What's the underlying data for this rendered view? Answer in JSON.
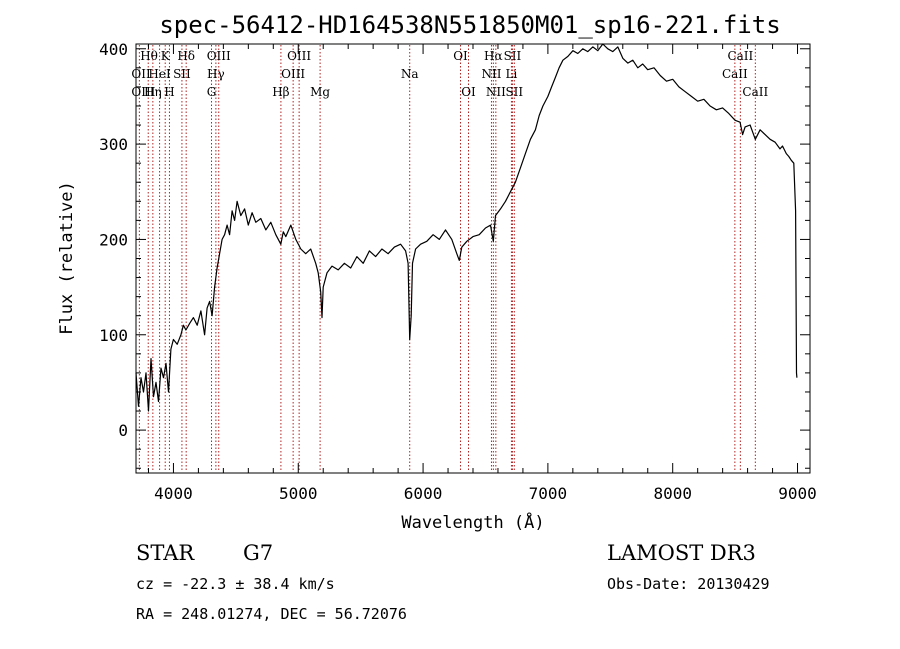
{
  "chart_data": {
    "type": "line",
    "title": "spec-56412-HD164538N551850M01_sp16-221.fits",
    "xlabel": "Wavelength (Å)",
    "ylabel": "Flux (relative)",
    "xlim": [
      3700,
      9100
    ],
    "ylim": [
      -45,
      405
    ],
    "xticks": [
      4000,
      5000,
      6000,
      7000,
      8000,
      9000
    ],
    "yticks": [
      0,
      100,
      200,
      300,
      400
    ],
    "series": [
      {
        "name": "spectrum",
        "points": [
          [
            3700,
            60
          ],
          [
            3720,
            25
          ],
          [
            3740,
            55
          ],
          [
            3760,
            40
          ],
          [
            3780,
            60
          ],
          [
            3800,
            20
          ],
          [
            3820,
            75
          ],
          [
            3840,
            35
          ],
          [
            3860,
            50
          ],
          [
            3880,
            30
          ],
          [
            3900,
            65
          ],
          [
            3920,
            55
          ],
          [
            3940,
            70
          ],
          [
            3960,
            40
          ],
          [
            3980,
            85
          ],
          [
            4000,
            95
          ],
          [
            4030,
            90
          ],
          [
            4060,
            100
          ],
          [
            4080,
            110
          ],
          [
            4100,
            105
          ],
          [
            4130,
            112
          ],
          [
            4160,
            118
          ],
          [
            4190,
            110
          ],
          [
            4220,
            125
          ],
          [
            4250,
            100
          ],
          [
            4270,
            128
          ],
          [
            4290,
            135
          ],
          [
            4310,
            120
          ],
          [
            4330,
            150
          ],
          [
            4350,
            170
          ],
          [
            4370,
            185
          ],
          [
            4390,
            200
          ],
          [
            4410,
            205
          ],
          [
            4430,
            215
          ],
          [
            4450,
            205
          ],
          [
            4470,
            230
          ],
          [
            4490,
            220
          ],
          [
            4510,
            240
          ],
          [
            4540,
            225
          ],
          [
            4570,
            232
          ],
          [
            4600,
            215
          ],
          [
            4630,
            228
          ],
          [
            4660,
            218
          ],
          [
            4700,
            222
          ],
          [
            4740,
            210
          ],
          [
            4780,
            218
          ],
          [
            4820,
            205
          ],
          [
            4860,
            195
          ],
          [
            4880,
            208
          ],
          [
            4900,
            203
          ],
          [
            4940,
            215
          ],
          [
            4980,
            200
          ],
          [
            5020,
            190
          ],
          [
            5060,
            185
          ],
          [
            5100,
            190
          ],
          [
            5140,
            175
          ],
          [
            5160,
            165
          ],
          [
            5180,
            145
          ],
          [
            5190,
            118
          ],
          [
            5200,
            150
          ],
          [
            5230,
            165
          ],
          [
            5270,
            172
          ],
          [
            5320,
            168
          ],
          [
            5370,
            175
          ],
          [
            5420,
            170
          ],
          [
            5470,
            182
          ],
          [
            5520,
            175
          ],
          [
            5570,
            188
          ],
          [
            5620,
            182
          ],
          [
            5670,
            190
          ],
          [
            5720,
            185
          ],
          [
            5770,
            192
          ],
          [
            5820,
            195
          ],
          [
            5860,
            188
          ],
          [
            5880,
            175
          ],
          [
            5893,
            95
          ],
          [
            5905,
            120
          ],
          [
            5915,
            175
          ],
          [
            5940,
            190
          ],
          [
            5980,
            195
          ],
          [
            6030,
            198
          ],
          [
            6080,
            205
          ],
          [
            6130,
            200
          ],
          [
            6180,
            210
          ],
          [
            6230,
            200
          ],
          [
            6270,
            185
          ],
          [
            6290,
            178
          ],
          [
            6310,
            192
          ],
          [
            6350,
            198
          ],
          [
            6400,
            203
          ],
          [
            6450,
            205
          ],
          [
            6500,
            212
          ],
          [
            6540,
            215
          ],
          [
            6563,
            198
          ],
          [
            6580,
            225
          ],
          [
            6620,
            232
          ],
          [
            6660,
            240
          ],
          [
            6700,
            250
          ],
          [
            6740,
            260
          ],
          [
            6780,
            275
          ],
          [
            6820,
            290
          ],
          [
            6860,
            305
          ],
          [
            6900,
            315
          ],
          [
            6930,
            330
          ],
          [
            6960,
            340
          ],
          [
            7000,
            350
          ],
          [
            7030,
            360
          ],
          [
            7060,
            370
          ],
          [
            7090,
            380
          ],
          [
            7120,
            388
          ],
          [
            7160,
            392
          ],
          [
            7200,
            398
          ],
          [
            7240,
            395
          ],
          [
            7280,
            400
          ],
          [
            7320,
            397
          ],
          [
            7360,
            402
          ],
          [
            7400,
            398
          ],
          [
            7440,
            405
          ],
          [
            7480,
            400
          ],
          [
            7520,
            397
          ],
          [
            7560,
            402
          ],
          [
            7600,
            390
          ],
          [
            7640,
            385
          ],
          [
            7680,
            388
          ],
          [
            7720,
            380
          ],
          [
            7760,
            384
          ],
          [
            7800,
            378
          ],
          [
            7850,
            380
          ],
          [
            7900,
            372
          ],
          [
            7950,
            366
          ],
          [
            8000,
            368
          ],
          [
            8050,
            360
          ],
          [
            8100,
            355
          ],
          [
            8150,
            350
          ],
          [
            8200,
            345
          ],
          [
            8250,
            347
          ],
          [
            8300,
            340
          ],
          [
            8350,
            336
          ],
          [
            8400,
            338
          ],
          [
            8450,
            332
          ],
          [
            8500,
            325
          ],
          [
            8540,
            323
          ],
          [
            8560,
            310
          ],
          [
            8580,
            318
          ],
          [
            8620,
            320
          ],
          [
            8662,
            305
          ],
          [
            8700,
            315
          ],
          [
            8740,
            310
          ],
          [
            8780,
            305
          ],
          [
            8820,
            302
          ],
          [
            8860,
            295
          ],
          [
            8880,
            298
          ],
          [
            8910,
            290
          ],
          [
            8930,
            287
          ],
          [
            8950,
            283
          ],
          [
            8970,
            280
          ],
          [
            8985,
            230
          ],
          [
            8992,
            60
          ],
          [
            8995,
            55
          ]
        ]
      }
    ],
    "lines": [
      {
        "name": "Hθ",
        "wave": 3798,
        "row": 0,
        "align": "start"
      },
      {
        "name": "K",
        "wave": 3934,
        "row": 0,
        "align": "middle"
      },
      {
        "name": "Hδ",
        "wave": 4102,
        "row": 0,
        "align": "middle"
      },
      {
        "name": "OIII",
        "wave": 4363,
        "row": 0,
        "align": "middle"
      },
      {
        "name": "OIII",
        "wave": 5007,
        "row": 0,
        "align": "middle"
      },
      {
        "name": "OI",
        "wave": 6300,
        "row": 0,
        "align": "middle"
      },
      {
        "name": "Hα",
        "wave": 6563,
        "row": 0,
        "align": "middle"
      },
      {
        "name": "SII",
        "wave": 6716,
        "row": 0,
        "align": "middle"
      },
      {
        "name": "CaII",
        "wave": 8542,
        "row": 0,
        "align": "middle"
      },
      {
        "name": "OII",
        "wave": 3727,
        "row": 1,
        "align": "start"
      },
      {
        "name": "HeI",
        "wave": 3889,
        "row": 1,
        "align": "middle"
      },
      {
        "name": "SII",
        "wave": 4068,
        "row": 1,
        "align": "middle"
      },
      {
        "name": "Hγ",
        "wave": 4340,
        "row": 1,
        "align": "middle"
      },
      {
        "name": "OIII",
        "wave": 4959,
        "row": 1,
        "align": "middle"
      },
      {
        "name": "Na",
        "wave": 5893,
        "row": 1,
        "align": "middle"
      },
      {
        "name": "NII",
        "wave": 6548,
        "row": 1,
        "align": "middle"
      },
      {
        "name": "Li",
        "wave": 6708,
        "row": 1,
        "align": "middle"
      },
      {
        "name": "CaII",
        "wave": 8498,
        "row": 1,
        "align": "middle"
      },
      {
        "name": "OIII",
        "wave": 3727,
        "row": 2,
        "align": "start"
      },
      {
        "name": "Hη",
        "wave": 3835,
        "row": 2,
        "align": "middle"
      },
      {
        "name": "H",
        "wave": 3968,
        "row": 2,
        "align": "middle"
      },
      {
        "name": "G",
        "wave": 4305,
        "row": 2,
        "align": "middle"
      },
      {
        "name": "Hβ",
        "wave": 4861,
        "row": 2,
        "align": "middle"
      },
      {
        "name": "Mg",
        "wave": 5175,
        "row": 2,
        "align": "middle"
      },
      {
        "name": "OI",
        "wave": 6364,
        "row": 2,
        "align": "middle"
      },
      {
        "name": "NII",
        "wave": 6583,
        "row": 2,
        "align": "middle"
      },
      {
        "name": "SII",
        "wave": 6731,
        "row": 2,
        "align": "middle"
      },
      {
        "name": "CaII",
        "wave": 8662,
        "row": 2,
        "align": "middle"
      }
    ],
    "line_waves": [
      3727,
      3798,
      3835,
      3889,
      3934,
      3968,
      4068,
      4102,
      4305,
      4340,
      4363,
      4861,
      4959,
      5007,
      5175,
      5893,
      6300,
      6364,
      6548,
      6563,
      6583,
      6708,
      6716,
      6731,
      8498,
      8542,
      8662
    ],
    "colors": {
      "spectrum": "#000000",
      "line_marker": "#b22222",
      "axis": "#000000"
    }
  },
  "info": {
    "class_label": "STAR",
    "subclass": "G7",
    "survey": "LAMOST DR3",
    "cz": "cz = -22.3 ± 38.4 km/s",
    "obs_date": "Obs-Date: 20130429",
    "coords": "RA = 248.01274, DEC =  56.72076"
  }
}
